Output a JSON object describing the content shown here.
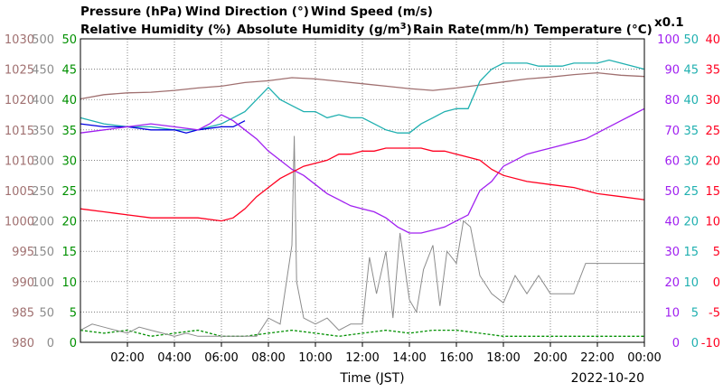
{
  "chart_data": {
    "type": "line",
    "date": "2022-10-20",
    "xlabel": "Time (JST)",
    "x_ticks": [
      "02:00",
      "04:00",
      "06:00",
      "08:00",
      "10:00",
      "12:00",
      "14:00",
      "16:00",
      "18:00",
      "20:00",
      "22:00",
      "00:00"
    ],
    "colors": {
      "pressure": "#a07070",
      "wind_direction": "#8c8c8c",
      "wind_speed": "#009000",
      "relative_humidity": "#a020f0",
      "absolute_humidity": "#20b0b0",
      "rain_rate": "#0000e0",
      "temperature": "#ff0020"
    },
    "axes": [
      {
        "id": "pressure",
        "side": "left",
        "labels": [
          "1030",
          "1025",
          "1020",
          "1015",
          "1010",
          "1005",
          "1000",
          "995",
          "990",
          "985",
          "980"
        ],
        "min": 980,
        "max": 1030
      },
      {
        "id": "wind_direction",
        "side": "left",
        "labels": [
          "500",
          "450",
          "400",
          "350",
          "300",
          "250",
          "200",
          "150",
          "100",
          "50",
          "0"
        ],
        "min": 0,
        "max": 500
      },
      {
        "id": "wind_speed",
        "side": "left",
        "labels": [
          "50",
          "45",
          "40",
          "35",
          "30",
          "25",
          "20",
          "15",
          "10",
          "5",
          "0"
        ],
        "min": 0,
        "max": 50
      },
      {
        "id": "relative_humidity",
        "side": "right",
        "labels": [
          "100",
          "90",
          "80",
          "70",
          "60",
          "50",
          "40",
          "30",
          "20",
          "10",
          "0"
        ],
        "min": 0,
        "max": 100
      },
      {
        "id": "absolute_humidity",
        "side": "right",
        "labels": [
          "50",
          "45",
          "40",
          "35",
          "30",
          "25",
          "20",
          "15",
          "10",
          "5",
          "0"
        ],
        "min": 0,
        "max": 50
      },
      {
        "id": "temperature",
        "side": "right",
        "labels": [
          "40",
          "35",
          "30",
          "25",
          "20",
          "15",
          "10",
          "5",
          "0",
          "-5",
          "-10"
        ],
        "min": -10,
        "max": 40
      }
    ],
    "titles": {
      "pressure": "Pressure (hPa)",
      "wind_direction": "Wind Direction (°)",
      "wind_speed": "Wind Speed (m/s)",
      "relative_humidity": "Relative Humidity (%)",
      "absolute_humidity_prefix": "Absolute Humidity (g/m",
      "absolute_humidity_sup": "3",
      "absolute_humidity_suffix": ")",
      "rain_rate": "Rain Rate(mm/h)",
      "temperature": "Temperature (°C)",
      "rain_scale": "x0.1"
    },
    "series": [
      {
        "id": "pressure",
        "name": "Pressure (hPa)",
        "x": [
          0,
          1,
          2,
          3,
          4,
          5,
          6,
          7,
          8,
          9,
          10,
          11,
          12,
          13,
          14,
          15,
          16,
          17,
          18,
          19,
          20,
          21,
          22,
          23,
          24
        ],
        "values": [
          1020.1,
          1020.8,
          1021.1,
          1021.2,
          1021.5,
          1021.9,
          1022.2,
          1022.8,
          1023.1,
          1023.6,
          1023.4,
          1023.0,
          1022.6,
          1022.2,
          1021.8,
          1021.5,
          1021.9,
          1022.4,
          1022.9,
          1023.4,
          1023.7,
          1024.1,
          1024.4,
          1024.0,
          1023.8
        ]
      },
      {
        "id": "wind_direction",
        "name": "Wind Direction (°)",
        "x": [
          0,
          0.5,
          1,
          1.5,
          2,
          2.5,
          3,
          3.5,
          4,
          4.5,
          5,
          5.5,
          6,
          6.5,
          7,
          7.5,
          8,
          8.5,
          9,
          9.1,
          9.2,
          9.5,
          10,
          10.5,
          11,
          11.5,
          12,
          12.3,
          12.6,
          13,
          13.3,
          13.6,
          14,
          14.3,
          14.6,
          15,
          15.3,
          15.6,
          16,
          16.3,
          16.6,
          17,
          17.5,
          18,
          18.5,
          19,
          19.5,
          20,
          20.5,
          21,
          21.5,
          22,
          22.5,
          23,
          23.5,
          24
        ],
        "values": [
          20,
          30,
          25,
          20,
          15,
          25,
          20,
          15,
          10,
          15,
          10,
          10,
          10,
          10,
          10,
          10,
          40,
          30,
          160,
          340,
          100,
          40,
          30,
          40,
          20,
          30,
          30,
          140,
          80,
          150,
          40,
          180,
          70,
          50,
          120,
          160,
          60,
          150,
          130,
          200,
          190,
          110,
          80,
          65,
          110,
          80,
          110,
          80,
          80,
          80,
          130,
          130,
          130,
          130,
          130,
          130
        ]
      },
      {
        "id": "wind_speed",
        "name": "Wind Speed (m/s)",
        "x": [
          0,
          1,
          2,
          3,
          4,
          5,
          6,
          7,
          8,
          9,
          10,
          11,
          12,
          13,
          14,
          15,
          16,
          17,
          18,
          19,
          20,
          21,
          22,
          23,
          24
        ],
        "values": [
          2,
          1.5,
          2,
          1,
          1.5,
          2,
          1,
          1,
          1.5,
          2,
          1.5,
          1,
          1.5,
          2,
          1.5,
          2,
          2,
          1.5,
          1,
          1,
          1,
          1,
          1,
          1,
          1
        ]
      },
      {
        "id": "relative_humidity",
        "name": "Relative Humidity (%)",
        "x": [
          0,
          1,
          2,
          3,
          4,
          5,
          5.5,
          6,
          6.5,
          7,
          7.5,
          8,
          8.5,
          9,
          9.5,
          10,
          10.5,
          11,
          11.5,
          12,
          12.5,
          13,
          13.5,
          14,
          14.5,
          15,
          15.5,
          16,
          16.5,
          17,
          17.5,
          18,
          18.5,
          19,
          19.5,
          20,
          20.5,
          21,
          21.5,
          22,
          22.5,
          23,
          23.5,
          24
        ],
        "values": [
          69,
          70,
          71,
          72,
          71,
          70,
          72,
          75,
          73,
          70,
          67,
          63,
          60,
          57,
          55,
          52,
          49,
          47,
          45,
          44,
          43,
          41,
          38,
          36,
          36,
          37,
          38,
          40,
          42,
          50,
          53,
          58,
          60,
          62,
          63,
          64,
          65,
          66,
          67,
          69,
          71,
          73,
          75,
          77
        ]
      },
      {
        "id": "absolute_humidity",
        "name": "Absolute Humidity (g/m³)",
        "x": [
          0,
          1,
          2,
          3,
          4,
          5,
          6,
          6.5,
          7,
          7.5,
          8,
          8.5,
          9,
          9.5,
          10,
          10.5,
          11,
          11.5,
          12,
          12.5,
          13,
          13.5,
          14,
          14.5,
          15,
          15.5,
          16,
          16.5,
          17,
          17.5,
          18,
          18.5,
          19,
          19.5,
          20,
          20.5,
          21,
          21.5,
          22,
          22.5,
          23,
          23.5,
          24
        ],
        "values": [
          37,
          36,
          35.5,
          35.5,
          35,
          35,
          36,
          37,
          38,
          40,
          42,
          40,
          39,
          38,
          38,
          37,
          37.5,
          37,
          37,
          36,
          35,
          34.5,
          34.5,
          36,
          37,
          38,
          38.5,
          38.5,
          43,
          45,
          46,
          46,
          46,
          45.5,
          45.5,
          45.5,
          46,
          46,
          46,
          46.5,
          46,
          45.5,
          45
        ]
      },
      {
        "id": "rain_rate",
        "name": "Rain Rate(mm/h)",
        "x": [
          0,
          1,
          2,
          3,
          4,
          4.5,
          5,
          6,
          6.5,
          7
        ],
        "values": [
          36,
          35.5,
          35.5,
          35,
          35,
          34.5,
          35,
          35.5,
          35.5,
          36.5
        ]
      },
      {
        "id": "temperature",
        "name": "Temperature (°C)",
        "x": [
          0,
          1,
          2,
          3,
          4,
          5,
          6,
          6.5,
          7,
          7.5,
          8,
          8.5,
          9,
          9.5,
          10,
          10.5,
          11,
          11.5,
          12,
          12.5,
          13,
          13.5,
          14,
          14.5,
          15,
          15.5,
          16,
          16.5,
          17,
          17.5,
          18,
          19,
          20,
          21,
          22,
          23,
          24
        ],
        "values": [
          12,
          11.5,
          11,
          10.5,
          10.5,
          10.5,
          10,
          10.5,
          12,
          14,
          15.5,
          17,
          18,
          19,
          19.5,
          20,
          21,
          21,
          21.5,
          21.5,
          22,
          22,
          22,
          22,
          21.5,
          21.5,
          21,
          20.5,
          20,
          18.5,
          17.5,
          16.5,
          16,
          15.5,
          14.5,
          14,
          13.5
        ]
      }
    ]
  }
}
